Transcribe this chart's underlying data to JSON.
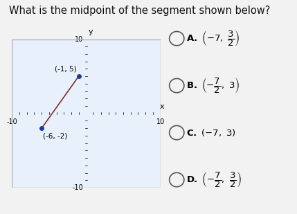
{
  "title": "What is the midpoint of the segment shown below?",
  "title_fontsize": 10.5,
  "page_bg": "#f2f2f2",
  "plot_bg_color": "#e8f0fb",
  "point1": [
    -6,
    -2
  ],
  "point2": [
    -1,
    5
  ],
  "point1_label": "(-6, -2)",
  "point2_label": "(-1, 5)",
  "segment_color": "#7a3030",
  "dot_color": "#1a3a9a",
  "axis_range": [
    -10,
    10
  ],
  "option_letters": [
    "A.",
    "B.",
    "C.",
    "D."
  ],
  "option_texts": [
    "(-7, 3/2)",
    "(-7/2, 3)",
    "(-7, 3)",
    "(-7/2, 3/2)"
  ]
}
